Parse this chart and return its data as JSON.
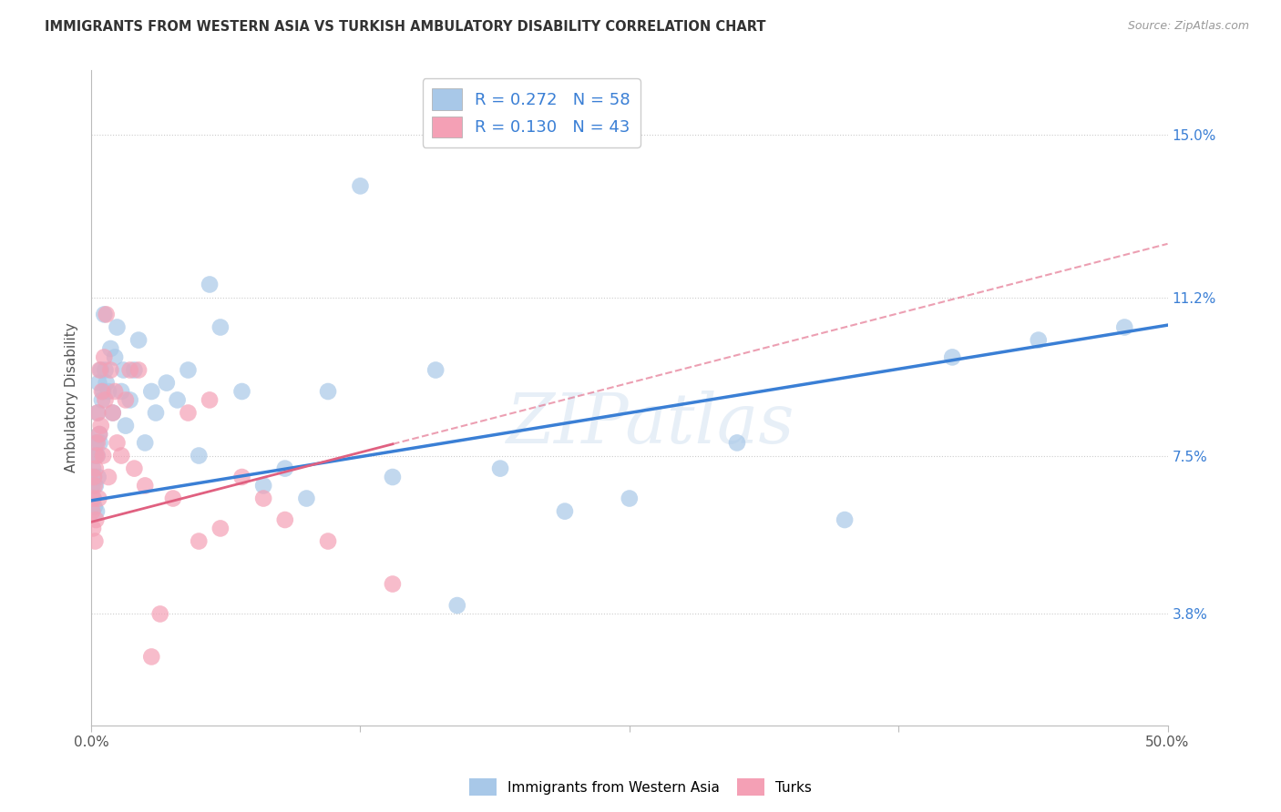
{
  "title": "IMMIGRANTS FROM WESTERN ASIA VS TURKISH AMBULATORY DISABILITY CORRELATION CHART",
  "source": "Source: ZipAtlas.com",
  "ylabel": "Ambulatory Disability",
  "ytick_labels": [
    "3.8%",
    "7.5%",
    "11.2%",
    "15.0%"
  ],
  "ytick_values": [
    3.8,
    7.5,
    11.2,
    15.0
  ],
  "xmin": 0.0,
  "xmax": 50.0,
  "ymin": 1.2,
  "ymax": 16.5,
  "legend_blue_r": "0.272",
  "legend_blue_n": "58",
  "legend_pink_r": "0.130",
  "legend_pink_n": "43",
  "legend_label_blue": "Immigrants from Western Asia",
  "legend_label_pink": "Turks",
  "watermark": "ZIPatlas",
  "blue_color": "#a8c8e8",
  "pink_color": "#f4a0b5",
  "line_blue": "#3a7fd5",
  "line_pink": "#e06080",
  "blue_scatter_x": [
    0.05,
    0.08,
    0.1,
    0.12,
    0.15,
    0.18,
    0.2,
    0.22,
    0.25,
    0.28,
    0.3,
    0.32,
    0.35,
    0.38,
    0.4,
    0.45,
    0.5,
    0.55,
    0.6,
    0.65,
    0.7,
    0.8,
    0.9,
    1.0,
    1.1,
    1.2,
    1.4,
    1.5,
    1.6,
    1.8,
    2.0,
    2.2,
    2.5,
    2.8,
    3.0,
    3.5,
    4.0,
    4.5,
    5.0,
    5.5,
    6.0,
    7.0,
    8.0,
    9.0,
    10.0,
    11.0,
    12.5,
    14.0,
    16.0,
    17.0,
    19.0,
    22.0,
    25.0,
    30.0,
    35.0,
    40.0,
    44.0,
    48.0
  ],
  "blue_scatter_y": [
    6.8,
    7.2,
    6.5,
    7.0,
    6.3,
    7.5,
    6.8,
    7.8,
    6.2,
    7.5,
    8.5,
    7.0,
    9.2,
    8.0,
    7.8,
    9.5,
    8.8,
    9.0,
    10.8,
    9.5,
    9.2,
    9.0,
    10.0,
    8.5,
    9.8,
    10.5,
    9.0,
    9.5,
    8.2,
    8.8,
    9.5,
    10.2,
    7.8,
    9.0,
    8.5,
    9.2,
    8.8,
    9.5,
    7.5,
    11.5,
    10.5,
    9.0,
    6.8,
    7.2,
    6.5,
    9.0,
    13.8,
    7.0,
    9.5,
    4.0,
    7.2,
    6.2,
    6.5,
    7.8,
    6.0,
    9.8,
    10.2,
    10.5
  ],
  "pink_scatter_x": [
    0.05,
    0.08,
    0.1,
    0.12,
    0.15,
    0.18,
    0.2,
    0.22,
    0.25,
    0.28,
    0.3,
    0.35,
    0.38,
    0.4,
    0.45,
    0.5,
    0.55,
    0.6,
    0.65,
    0.7,
    0.8,
    0.9,
    1.0,
    1.1,
    1.2,
    1.4,
    1.6,
    1.8,
    2.0,
    2.2,
    2.5,
    2.8,
    3.2,
    3.8,
    4.5,
    5.0,
    5.5,
    6.0,
    7.0,
    8.0,
    9.0,
    11.0,
    14.0
  ],
  "pink_scatter_y": [
    6.2,
    5.8,
    6.5,
    7.0,
    6.8,
    5.5,
    7.2,
    6.0,
    7.5,
    7.8,
    8.5,
    6.5,
    8.0,
    9.5,
    8.2,
    9.0,
    7.5,
    9.8,
    8.8,
    10.8,
    7.0,
    9.5,
    8.5,
    9.0,
    7.8,
    7.5,
    8.8,
    9.5,
    7.2,
    9.5,
    6.8,
    2.8,
    3.8,
    6.5,
    8.5,
    5.5,
    8.8,
    5.8,
    7.0,
    6.5,
    6.0,
    5.5,
    4.5
  ]
}
